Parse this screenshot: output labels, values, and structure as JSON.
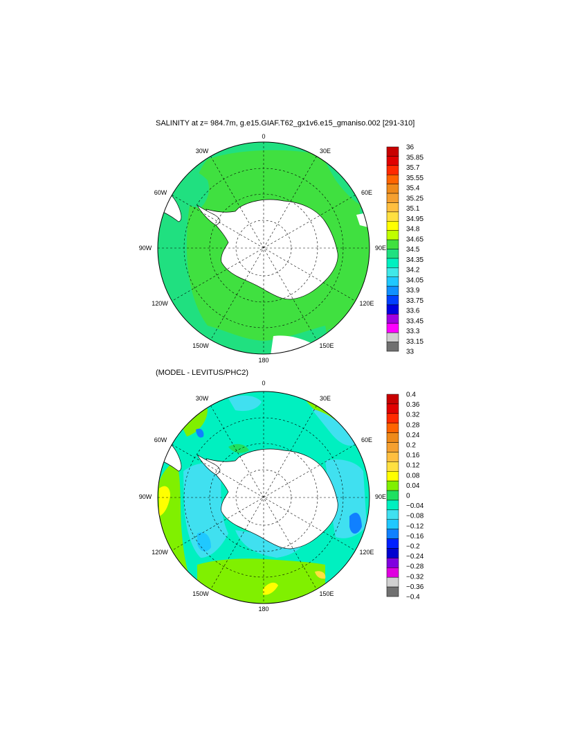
{
  "figure": {
    "title_top": "SALINITY at z= 984.7m, g.e15.GIAF.T62_gx1v6.e15_gmaniso.002 [291-310]",
    "title_bottom": "(MODEL - LEVITUS/PHC2)"
  },
  "lon_labels": [
    "0",
    "30E",
    "60E",
    "90E",
    "120E",
    "150E",
    "180",
    "150W",
    "120W",
    "90W",
    "60W",
    "30W"
  ],
  "colors": {
    "land": "#ffffff",
    "coast": "#000000",
    "grid": "#000000"
  },
  "top_map": {
    "colorbar_labels": [
      "36",
      "35.85",
      "35.7",
      "35.55",
      "35.4",
      "35.25",
      "35.1",
      "34.95",
      "34.8",
      "34.65",
      "34.5",
      "34.35",
      "34.2",
      "34.05",
      "33.9",
      "33.75",
      "33.6",
      "33.45",
      "33.3",
      "33.15",
      "33"
    ],
    "colorbar_colors": [
      "#c80000",
      "#e00000",
      "#ff2a00",
      "#ff6400",
      "#ef8a1a",
      "#f5a030",
      "#ffbf40",
      "#ffe040",
      "#ffff00",
      "#c0ff00",
      "#40e040",
      "#20e080",
      "#00f0c0",
      "#40e8e8",
      "#20c8ff",
      "#1090ff",
      "#0040ff",
      "#0000e0",
      "#a000e0",
      "#ff00ff",
      "#d0d0d0",
      "#707070"
    ]
  },
  "bottom_map": {
    "colorbar_labels": [
      "0.4",
      "0.36",
      "0.32",
      "0.28",
      "0.24",
      "0.2",
      "0.16",
      "0.12",
      "0.08",
      "0.04",
      "0",
      "−0.04",
      "−0.08",
      "−0.12",
      "−0.16",
      "−0.2",
      "−0.24",
      "−0.28",
      "−0.32",
      "−0.36",
      "−0.4"
    ],
    "colorbar_colors": [
      "#c80000",
      "#e00000",
      "#ff2a00",
      "#ff6400",
      "#ef8a1a",
      "#f5a030",
      "#ffbf40",
      "#ffe040",
      "#ffff00",
      "#80f000",
      "#20e060",
      "#00f0c0",
      "#40e0f0",
      "#20c8ff",
      "#1080ff",
      "#0020ff",
      "#0000d0",
      "#8000e0",
      "#e000e0",
      "#d0d0d0",
      "#707070"
    ]
  }
}
